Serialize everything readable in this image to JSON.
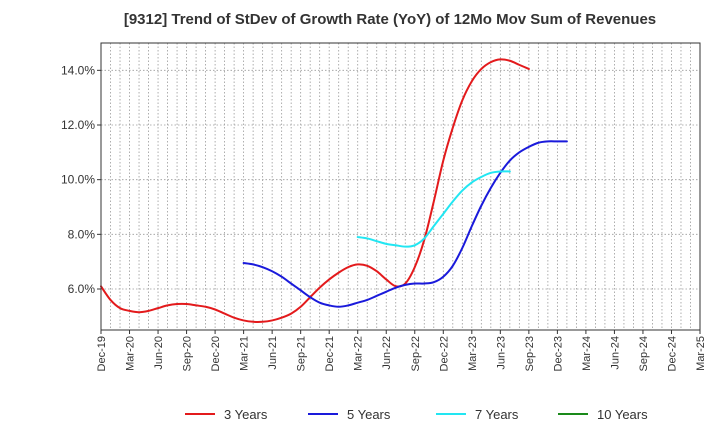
{
  "chart_data": {
    "type": "line",
    "title": "[9312]  Trend of StDev of Growth Rate (YoY) of 12Mo Mov Sum of Revenues",
    "xlabel": "",
    "ylabel": "",
    "ylim": [
      4.5,
      15.0
    ],
    "y_ticks": [
      6.0,
      8.0,
      10.0,
      12.0,
      14.0
    ],
    "y_tick_labels": [
      "6.0%",
      "8.0%",
      "10.0%",
      "12.0%",
      "14.0%"
    ],
    "x_tick_labels": [
      "Dec-19",
      "Mar-20",
      "Jun-20",
      "Sep-20",
      "Dec-20",
      "Mar-21",
      "Jun-21",
      "Sep-21",
      "Dec-21",
      "Mar-22",
      "Jun-22",
      "Sep-22",
      "Dec-22",
      "Mar-23",
      "Jun-23",
      "Sep-23",
      "Dec-23",
      "Mar-24",
      "Jun-24",
      "Sep-24",
      "Dec-24",
      "Mar-25"
    ],
    "grid": true,
    "legend_position": "bottom",
    "series": [
      {
        "name": "3 Years",
        "color": "#e31a1c",
        "start_index": 0,
        "values": [
          6.1,
          5.6,
          5.3,
          5.2,
          5.15,
          5.2,
          5.3,
          5.4,
          5.45,
          5.45,
          5.4,
          5.35,
          5.25,
          5.1,
          4.95,
          4.85,
          4.8,
          4.8,
          4.85,
          4.95,
          5.1,
          5.35,
          5.7,
          6.05,
          6.35,
          6.6,
          6.8,
          6.9,
          6.85,
          6.65,
          6.35,
          6.1,
          6.2,
          6.8,
          7.8,
          9.2,
          10.7,
          11.9,
          12.9,
          13.6,
          14.05,
          14.3,
          14.4,
          14.35,
          14.2,
          14.05
        ]
      },
      {
        "name": "5 Years",
        "color": "#1a1adb",
        "start_index": 15,
        "values": [
          6.95,
          6.9,
          6.8,
          6.65,
          6.45,
          6.2,
          5.95,
          5.7,
          5.5,
          5.4,
          5.35,
          5.4,
          5.5,
          5.6,
          5.75,
          5.9,
          6.05,
          6.15,
          6.2,
          6.2,
          6.25,
          6.45,
          6.85,
          7.5,
          8.3,
          9.05,
          9.7,
          10.25,
          10.7,
          11.0,
          11.2,
          11.35,
          11.4,
          11.4,
          11.4
        ]
      },
      {
        "name": "7 Years",
        "color": "#22e6f2",
        "start_index": 27,
        "values": [
          7.9,
          7.85,
          7.75,
          7.65,
          7.6,
          7.55,
          7.6,
          7.85,
          8.3,
          8.75,
          9.2,
          9.6,
          9.9,
          10.1,
          10.25,
          10.3,
          10.3
        ]
      },
      {
        "name": "10 Years",
        "color": "#1a8a1a",
        "start_index": 0,
        "values": []
      }
    ]
  }
}
